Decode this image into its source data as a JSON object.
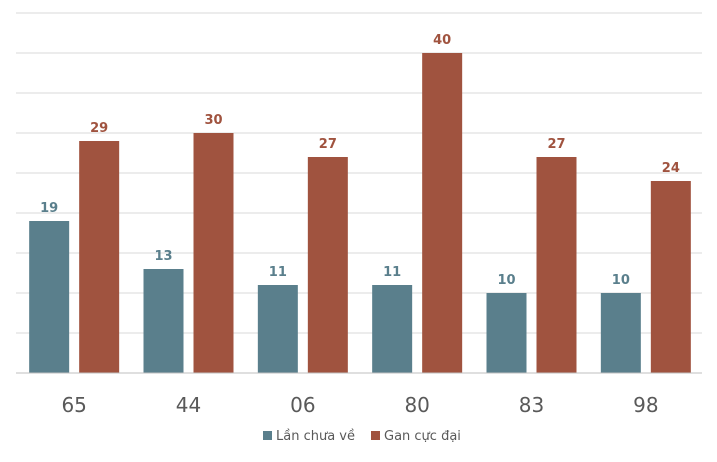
{
  "chart_data": {
    "type": "bar",
    "categories": [
      "65",
      "44",
      "06",
      "80",
      "83",
      "98"
    ],
    "series": [
      {
        "name": "Lần chưa về",
        "values": [
          19,
          13,
          11,
          11,
          10,
          10
        ],
        "color": "#5a7f8c"
      },
      {
        "name": "Gan cực đại",
        "values": [
          29,
          30,
          27,
          40,
          27,
          24
        ],
        "color": "#a0533f"
      }
    ],
    "title": "",
    "xlabel": "",
    "ylabel": "",
    "ylim": [
      0,
      45
    ],
    "grid": true,
    "grid_step": 5,
    "legend": "bottom-center"
  }
}
